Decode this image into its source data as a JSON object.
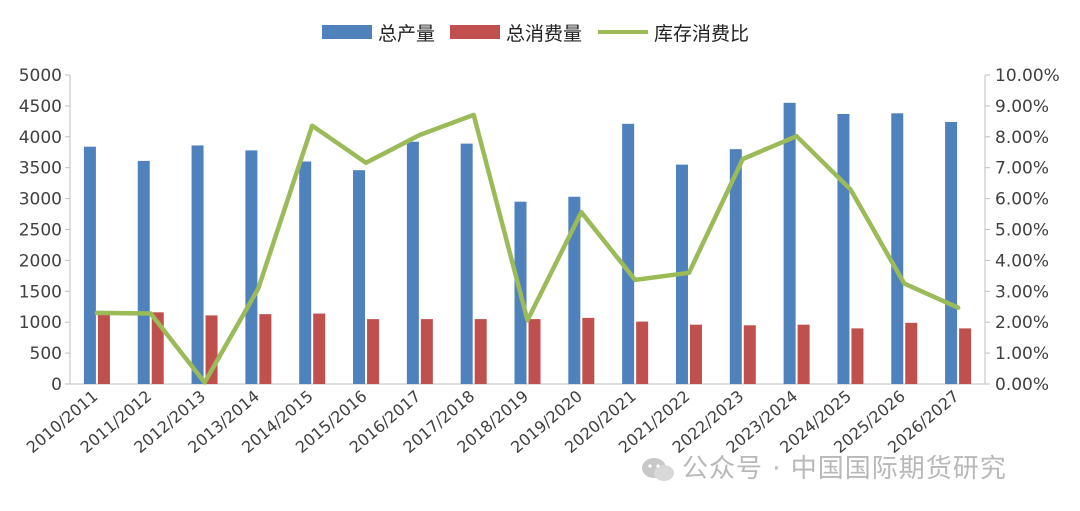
{
  "chart_data": {
    "type": "bar",
    "categories": [
      "2010/2011",
      "2011/2012",
      "2012/2013",
      "2013/2014",
      "2014/2015",
      "2015/2016",
      "2016/2017",
      "2017/2018",
      "2018/2019",
      "2019/2020",
      "2020/2021",
      "2021/2022",
      "2022/2023",
      "2023/2024",
      "2024/2025",
      "2025/2026",
      "2026/2027"
    ],
    "series": [
      {
        "name": "总产量",
        "type": "bar",
        "axis": "left",
        "color": "#4F81BD",
        "values": [
          3840,
          3610,
          3860,
          3780,
          3600,
          3460,
          3920,
          3890,
          2950,
          3030,
          4210,
          3550,
          3800,
          4550,
          4370,
          4380,
          4240
        ]
      },
      {
        "name": "总消费量",
        "type": "bar",
        "axis": "left",
        "color": "#C0504D",
        "values": [
          1120,
          1160,
          1110,
          1130,
          1140,
          1050,
          1050,
          1050,
          1050,
          1070,
          1010,
          960,
          950,
          960,
          900,
          990,
          900
        ]
      },
      {
        "name": "库存消费比",
        "type": "line",
        "axis": "right",
        "color": "#9BBB59",
        "values": [
          0.023,
          0.0228,
          0.0005,
          0.031,
          0.0836,
          0.0716,
          0.0806,
          0.0871,
          0.0206,
          0.0556,
          0.0337,
          0.036,
          0.0728,
          0.0802,
          0.063,
          0.0325,
          0.0247
        ]
      }
    ],
    "yleft": {
      "lim": [
        0,
        5000
      ],
      "ticks": [
        "0",
        "500",
        "1000",
        "1500",
        "2000",
        "2500",
        "3000",
        "3500",
        "4000",
        "4500",
        "5000"
      ]
    },
    "yright": {
      "lim": [
        0,
        0.1
      ],
      "ticks": [
        "0.00%",
        "1.00%",
        "2.00%",
        "3.00%",
        "4.00%",
        "5.00%",
        "6.00%",
        "7.00%",
        "8.00%",
        "9.00%",
        "10.00%"
      ]
    },
    "legend_position": "top-center",
    "grid": false
  },
  "watermark": "公众号 · 中国国际期货研究"
}
